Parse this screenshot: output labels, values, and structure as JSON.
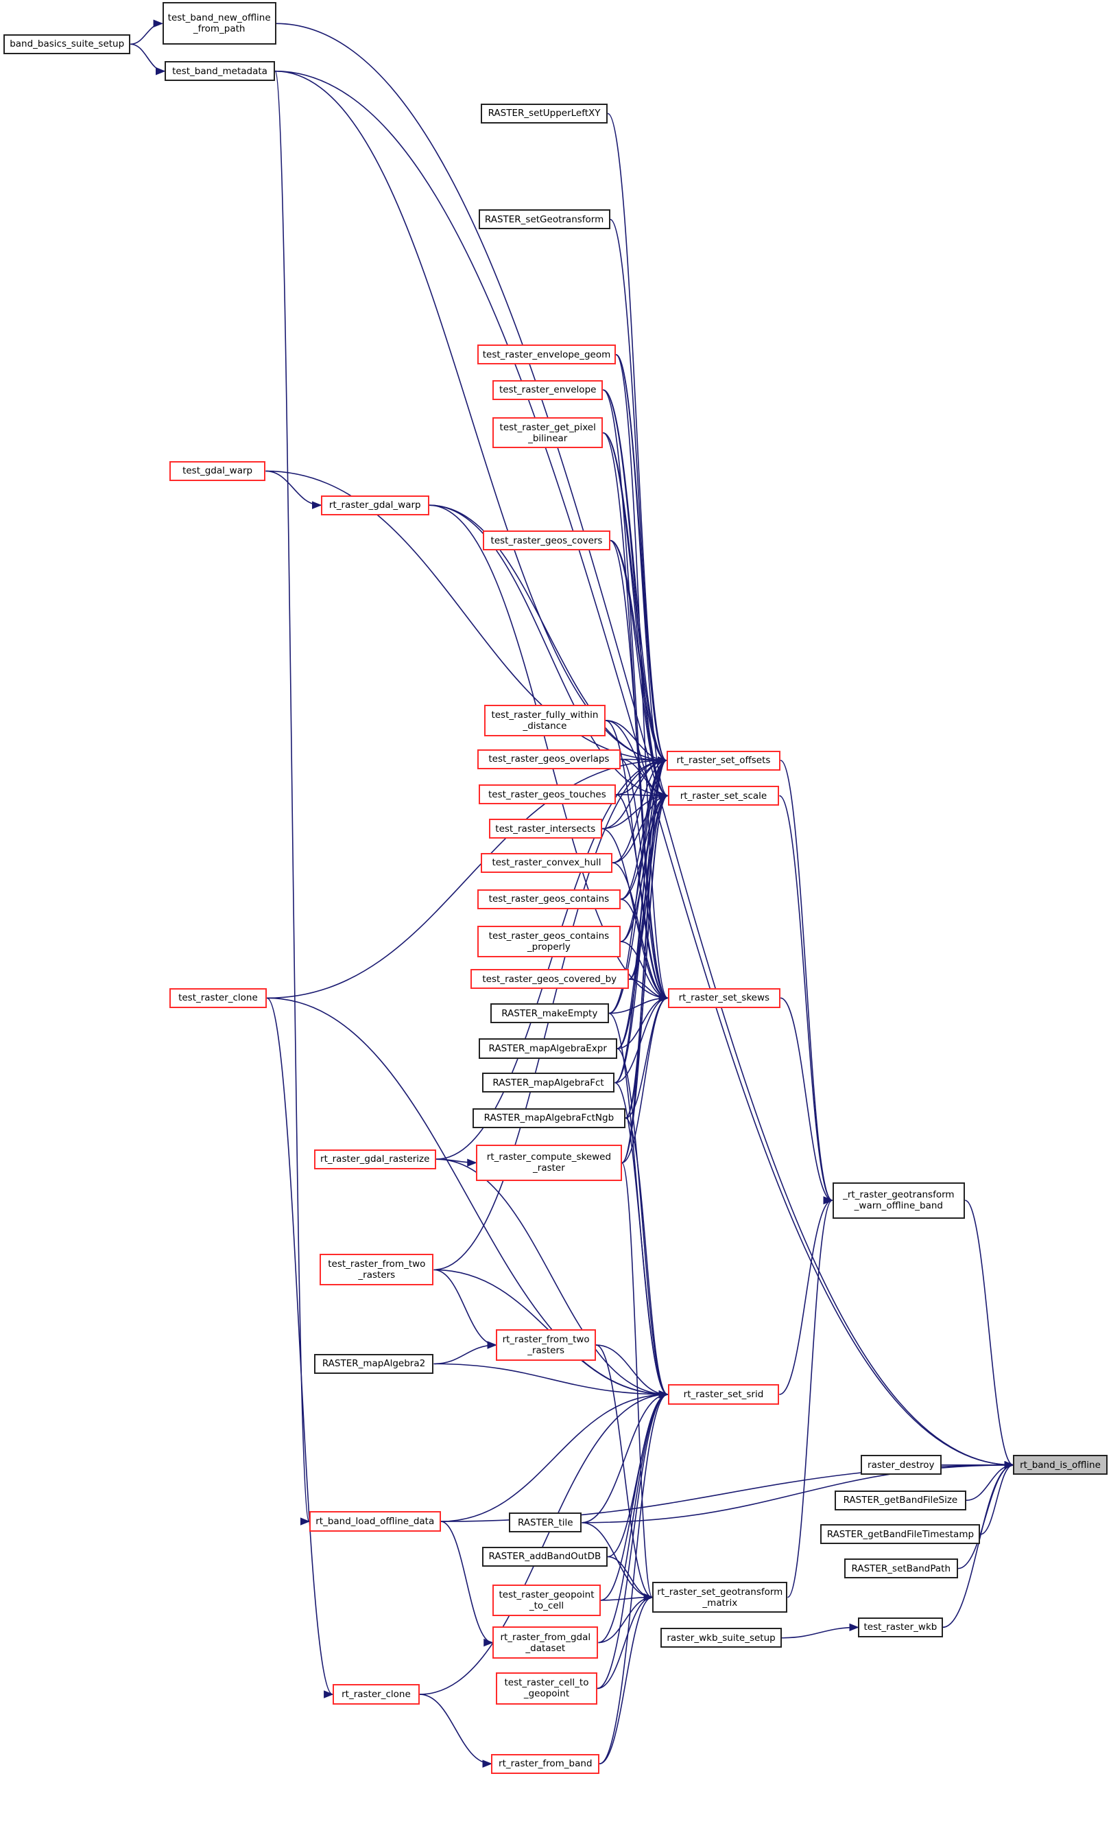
{
  "graph": {
    "root": "rt_band_is_offline",
    "edge_color": "#191970",
    "linked_border_color": "#ff0000",
    "root_fill_color": "#bfbfbf",
    "nodes": [
      {
        "id": "n1",
        "label": "test_band_new_offline\n_from_path",
        "red": false
      },
      {
        "id": "n2",
        "label": "band_basics_suite_setup",
        "red": false
      },
      {
        "id": "n3",
        "label": "test_band_metadata",
        "red": false
      },
      {
        "id": "n4",
        "label": "RASTER_setUpperLeftXY",
        "red": false
      },
      {
        "id": "n5",
        "label": "RASTER_setGeotransform",
        "red": false
      },
      {
        "id": "n6",
        "label": "test_raster_envelope_geom",
        "red": true
      },
      {
        "id": "n7",
        "label": "test_raster_envelope",
        "red": true
      },
      {
        "id": "n8",
        "label": "test_raster_get_pixel\n_bilinear",
        "red": true
      },
      {
        "id": "n9",
        "label": "test_gdal_warp",
        "red": true
      },
      {
        "id": "n10",
        "label": "rt_raster_gdal_warp",
        "red": true
      },
      {
        "id": "n11",
        "label": "test_raster_geos_covers",
        "red": true
      },
      {
        "id": "n12",
        "label": "test_raster_fully_within\n_distance",
        "red": true
      },
      {
        "id": "n13",
        "label": "test_raster_geos_overlaps",
        "red": true
      },
      {
        "id": "n14",
        "label": "test_raster_geos_touches",
        "red": true
      },
      {
        "id": "n15",
        "label": "test_raster_intersects",
        "red": true
      },
      {
        "id": "n16",
        "label": "test_raster_convex_hull",
        "red": true
      },
      {
        "id": "n17",
        "label": "test_raster_geos_contains",
        "red": true
      },
      {
        "id": "n18",
        "label": "test_raster_geos_contains\n_properly",
        "red": true
      },
      {
        "id": "n19",
        "label": "test_raster_geos_covered_by",
        "red": true
      },
      {
        "id": "n20",
        "label": "RASTER_makeEmpty",
        "red": false
      },
      {
        "id": "n21",
        "label": "RASTER_mapAlgebraExpr",
        "red": false
      },
      {
        "id": "n22",
        "label": "RASTER_mapAlgebraFct",
        "red": false
      },
      {
        "id": "n23",
        "label": "RASTER_mapAlgebraFctNgb",
        "red": false
      },
      {
        "id": "n24",
        "label": "rt_raster_compute_skewed\n_raster",
        "red": true
      },
      {
        "id": "n25",
        "label": "rt_raster_gdal_rasterize",
        "red": true
      },
      {
        "id": "n26",
        "label": "test_raster_clone",
        "red": true
      },
      {
        "id": "n27",
        "label": "rt_raster_set_offsets",
        "red": true
      },
      {
        "id": "n28",
        "label": "rt_raster_set_scale",
        "red": true
      },
      {
        "id": "n29",
        "label": "rt_raster_set_skews",
        "red": true
      },
      {
        "id": "n30",
        "label": "_rt_raster_geotransform\n_warn_offline_band",
        "red": false
      },
      {
        "id": "n31",
        "label": "test_raster_from_two\n_rasters",
        "red": true
      },
      {
        "id": "n32",
        "label": "rt_raster_from_two\n_rasters",
        "red": true
      },
      {
        "id": "n33",
        "label": "RASTER_mapAlgebra2",
        "red": false
      },
      {
        "id": "n34",
        "label": "rt_raster_set_srid",
        "red": true
      },
      {
        "id": "n35",
        "label": "rt_band_is_offline",
        "red": false,
        "root": true
      },
      {
        "id": "n36",
        "label": "raster_destroy",
        "red": false
      },
      {
        "id": "n37",
        "label": "RASTER_getBandFileSize",
        "red": false
      },
      {
        "id": "n38",
        "label": "RASTER_getBandFileTimestamp",
        "red": false
      },
      {
        "id": "n39",
        "label": "RASTER_setBandPath",
        "red": false
      },
      {
        "id": "n40",
        "label": "test_raster_wkb",
        "red": false
      },
      {
        "id": "n41",
        "label": "raster_wkb_suite_setup",
        "red": false
      },
      {
        "id": "n42",
        "label": "rt_band_load_offline_data",
        "red": true
      },
      {
        "id": "n43",
        "label": "RASTER_tile",
        "red": false
      },
      {
        "id": "n44",
        "label": "RASTER_addBandOutDB",
        "red": false
      },
      {
        "id": "n45",
        "label": "rt_raster_set_geotransform\n_matrix",
        "red": false
      },
      {
        "id": "n46",
        "label": "test_raster_geopoint\n_to_cell",
        "red": true
      },
      {
        "id": "n47",
        "label": "rt_raster_from_gdal\n_dataset",
        "red": true
      },
      {
        "id": "n48",
        "label": "test_raster_cell_to\n_geopoint",
        "red": true
      },
      {
        "id": "n49",
        "label": "rt_raster_clone",
        "red": true
      },
      {
        "id": "n50",
        "label": "rt_raster_from_band",
        "red": true
      }
    ],
    "edges": [
      [
        "n2",
        "n1"
      ],
      [
        "n2",
        "n3"
      ],
      [
        "n1",
        "n35"
      ],
      [
        "n3",
        "n35"
      ],
      [
        "n3",
        "n27"
      ],
      [
        "n3",
        "n42"
      ],
      [
        "n4",
        "n27"
      ],
      [
        "n5",
        "n27"
      ],
      [
        "n6",
        "n27"
      ],
      [
        "n6",
        "n28"
      ],
      [
        "n6",
        "n29"
      ],
      [
        "n7",
        "n27"
      ],
      [
        "n7",
        "n28"
      ],
      [
        "n7",
        "n29"
      ],
      [
        "n8",
        "n27"
      ],
      [
        "n8",
        "n28"
      ],
      [
        "n8",
        "n29"
      ],
      [
        "n9",
        "n10"
      ],
      [
        "n9",
        "n27"
      ],
      [
        "n10",
        "n27"
      ],
      [
        "n10",
        "n28"
      ],
      [
        "n10",
        "n29"
      ],
      [
        "n11",
        "n27"
      ],
      [
        "n11",
        "n28"
      ],
      [
        "n11",
        "n29"
      ],
      [
        "n12",
        "n27"
      ],
      [
        "n12",
        "n28"
      ],
      [
        "n12",
        "n29"
      ],
      [
        "n13",
        "n27"
      ],
      [
        "n13",
        "n28"
      ],
      [
        "n13",
        "n29"
      ],
      [
        "n14",
        "n27"
      ],
      [
        "n14",
        "n28"
      ],
      [
        "n14",
        "n29"
      ],
      [
        "n15",
        "n27"
      ],
      [
        "n15",
        "n28"
      ],
      [
        "n15",
        "n29"
      ],
      [
        "n16",
        "n27"
      ],
      [
        "n16",
        "n28"
      ],
      [
        "n16",
        "n29"
      ],
      [
        "n17",
        "n27"
      ],
      [
        "n17",
        "n28"
      ],
      [
        "n17",
        "n29"
      ],
      [
        "n18",
        "n27"
      ],
      [
        "n18",
        "n28"
      ],
      [
        "n18",
        "n29"
      ],
      [
        "n19",
        "n27"
      ],
      [
        "n19",
        "n28"
      ],
      [
        "n19",
        "n29"
      ],
      [
        "n20",
        "n27"
      ],
      [
        "n20",
        "n28"
      ],
      [
        "n20",
        "n29"
      ],
      [
        "n20",
        "n34"
      ],
      [
        "n21",
        "n27"
      ],
      [
        "n21",
        "n28"
      ],
      [
        "n21",
        "n29"
      ],
      [
        "n21",
        "n34"
      ],
      [
        "n22",
        "n27"
      ],
      [
        "n22",
        "n28"
      ],
      [
        "n22",
        "n29"
      ],
      [
        "n22",
        "n34"
      ],
      [
        "n23",
        "n27"
      ],
      [
        "n23",
        "n28"
      ],
      [
        "n23",
        "n29"
      ],
      [
        "n23",
        "n34"
      ],
      [
        "n24",
        "n27"
      ],
      [
        "n24",
        "n28"
      ],
      [
        "n24",
        "n29"
      ],
      [
        "n24",
        "n45"
      ],
      [
        "n25",
        "n24"
      ],
      [
        "n25",
        "n27"
      ],
      [
        "n25",
        "n34"
      ],
      [
        "n26",
        "n27"
      ],
      [
        "n26",
        "n34"
      ],
      [
        "n26",
        "n49"
      ],
      [
        "n27",
        "n30"
      ],
      [
        "n28",
        "n30"
      ],
      [
        "n29",
        "n30"
      ],
      [
        "n34",
        "n30"
      ],
      [
        "n45",
        "n30"
      ],
      [
        "n30",
        "n35"
      ],
      [
        "n31",
        "n32"
      ],
      [
        "n31",
        "n27"
      ],
      [
        "n31",
        "n34"
      ],
      [
        "n32",
        "n34"
      ],
      [
        "n32",
        "n45"
      ],
      [
        "n33",
        "n32"
      ],
      [
        "n33",
        "n34"
      ],
      [
        "n36",
        "n35"
      ],
      [
        "n37",
        "n35"
      ],
      [
        "n38",
        "n35"
      ],
      [
        "n39",
        "n35"
      ],
      [
        "n40",
        "n35"
      ],
      [
        "n41",
        "n40"
      ],
      [
        "n42",
        "n35"
      ],
      [
        "n42",
        "n34"
      ],
      [
        "n42",
        "n47"
      ],
      [
        "n43",
        "n35"
      ],
      [
        "n43",
        "n34"
      ],
      [
        "n43",
        "n45"
      ],
      [
        "n44",
        "n34"
      ],
      [
        "n44",
        "n45"
      ],
      [
        "n46",
        "n45"
      ],
      [
        "n46",
        "n34"
      ],
      [
        "n47",
        "n45"
      ],
      [
        "n47",
        "n34"
      ],
      [
        "n48",
        "n45"
      ],
      [
        "n48",
        "n34"
      ],
      [
        "n49",
        "n50"
      ],
      [
        "n49",
        "n34"
      ],
      [
        "n50",
        "n45"
      ],
      [
        "n50",
        "n34"
      ]
    ]
  }
}
